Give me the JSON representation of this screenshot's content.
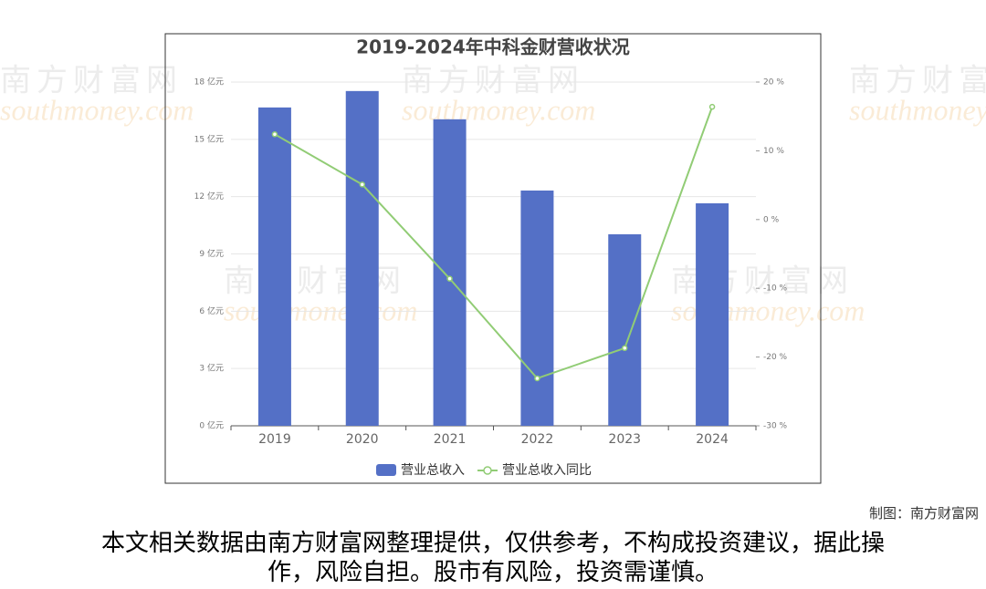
{
  "chart_data": {
    "type": "bar-line",
    "title": "2019-2024年中科金财营收状况",
    "categories": [
      "2019",
      "2020",
      "2021",
      "2022",
      "2023",
      "2024"
    ],
    "series": [
      {
        "name": "营业总收入",
        "type": "bar",
        "color": "#5470c6",
        "values": [
          16.67,
          17.53,
          16.05,
          12.32,
          10.03,
          11.65
        ]
      },
      {
        "name": "营业总收入同比",
        "type": "line",
        "axis": "y2",
        "color": "#91cc75",
        "values": [
          12.4,
          5.1,
          -8.6,
          -23.1,
          -18.7,
          16.4
        ]
      }
    ],
    "ylim": [
      0,
      18
    ],
    "yticks": [
      {
        "value": 0,
        "label": "0 亿元"
      },
      {
        "value": 3,
        "label": "3 亿元"
      },
      {
        "value": 6,
        "label": "6 亿元"
      },
      {
        "value": 9,
        "label": "9 亿元"
      },
      {
        "value": 12,
        "label": "12 亿元"
      },
      {
        "value": 15,
        "label": "15 亿元"
      },
      {
        "value": 18,
        "label": "18 亿元"
      }
    ],
    "y2lim": [
      -30,
      20
    ],
    "y2ticks": [
      {
        "value": -30,
        "label": "-30 %"
      },
      {
        "value": -20,
        "label": "-20 %"
      },
      {
        "value": -10,
        "label": "-10 %"
      },
      {
        "value": 0,
        "label": "0 %"
      },
      {
        "value": 10,
        "label": "10 %"
      },
      {
        "value": 20,
        "label": "20 %"
      }
    ],
    "grid": true,
    "legend": "bottom"
  },
  "watermark": [
    "南方财富网",
    "southmoney.com"
  ],
  "credit": "制图：南方财富网",
  "disclaimer": "本文相关数据由南方财富网整理提供，仅供参考，不构成投资建议，据此操作，风险自担。股市有风险，投资需谨慎。"
}
